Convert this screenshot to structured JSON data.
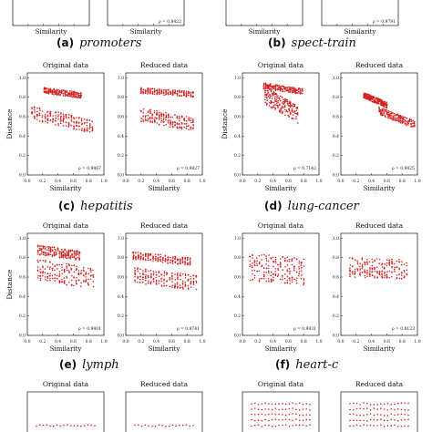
{
  "captions": [
    {
      "label": "(a)",
      "name": "promoters"
    },
    {
      "label": "(b)",
      "name": "spect-train"
    },
    {
      "label": "(c)",
      "name": "hepatitis"
    },
    {
      "label": "(d)",
      "name": "lung-cancer"
    },
    {
      "label": "(e)",
      "name": "lymph"
    },
    {
      "label": "(f)",
      "name": "heart-c"
    }
  ],
  "panel_titles": {
    "left": "Original data",
    "right": "Reduced data"
  },
  "axis_labels": {
    "x": "Similarity",
    "y": "Distance"
  },
  "colors": {
    "points": "#d42020",
    "axes": "#333333"
  },
  "chart_data": [
    {
      "dataset": "promoters",
      "type": "scatter",
      "xlabel": "Similarity",
      "stats_text": [
        "",
        "ρ = 0.8422"
      ]
    },
    {
      "dataset": "spect-train",
      "type": "scatter",
      "xlabel": "Similarity",
      "stats_text": [
        "",
        "ρ = 0.9791"
      ]
    },
    {
      "dataset": "hepatitis",
      "type": "scatter",
      "xlabel": "Similarity",
      "ylabel": "Distance",
      "xticks": [
        "0.0",
        "0.2",
        "0.4",
        "0.6",
        "0.8",
        "1.0"
      ],
      "yticks": [
        "0.0",
        "0.2",
        "0.4",
        "0.6",
        "0.8",
        "1.0"
      ],
      "xlim": [
        0,
        1
      ],
      "ylim": [
        0,
        1.05
      ],
      "stats_text": [
        "ρ = 0.9867",
        "ρ = 0.9827"
      ],
      "original_bands": [
        {
          "x_range": [
            0.22,
            0.7
          ],
          "y_start": 0.87,
          "y_end": 0.82,
          "spread": 0.03
        },
        {
          "x_range": [
            0.06,
            0.85
          ],
          "y_start": 0.64,
          "y_end": 0.5,
          "spread": 0.07
        }
      ],
      "reduced_bands": [
        {
          "x_range": [
            0.2,
            0.88
          ],
          "y_start": 0.87,
          "y_end": 0.83,
          "spread": 0.03
        },
        {
          "x_range": [
            0.2,
            0.88
          ],
          "y_start": 0.62,
          "y_end": 0.52,
          "spread": 0.07
        }
      ]
    },
    {
      "dataset": "lung-cancer",
      "type": "scatter",
      "xlabel": "Similarity",
      "ylabel": "Distance",
      "xticks": [
        "0.0",
        "0.2",
        "0.4",
        "0.6",
        "0.8",
        "1.0"
      ],
      "yticks": [
        "0.0",
        "0.2",
        "0.4",
        "0.6",
        "0.8",
        "1.0"
      ],
      "xlim": [
        0,
        1
      ],
      "ylim": [
        0,
        1.05
      ],
      "stats_text": [
        "ρ = 0.7142",
        "ρ = 0.9825"
      ],
      "original_bands": [
        {
          "x_range": [
            0.28,
            0.78
          ],
          "y_start": 0.92,
          "y_end": 0.86,
          "spread": 0.03
        },
        {
          "x_range": [
            0.3,
            0.72
          ],
          "y_start": 0.82,
          "y_end": 0.62,
          "spread": 0.09
        }
      ],
      "reduced_bands": [
        {
          "x_range": [
            0.3,
            0.6
          ],
          "y_start": 0.82,
          "y_end": 0.72,
          "spread": 0.03
        },
        {
          "x_range": [
            0.5,
            0.96
          ],
          "y_start": 0.66,
          "y_end": 0.52,
          "spread": 0.04
        }
      ]
    },
    {
      "dataset": "lymph",
      "type": "scatter",
      "xlabel": "Similarity",
      "ylabel": "Distance",
      "xticks": [
        "0.0",
        "0.2",
        "0.4",
        "0.6",
        "0.8",
        "1.0"
      ],
      "yticks": [
        "0.0",
        "0.2",
        "0.4",
        "0.6",
        "0.8",
        "1.0"
      ],
      "xlim": [
        0,
        1
      ],
      "ylim": [
        0,
        1.05
      ],
      "stats_text": [
        "ρ = 0.9801",
        "ρ = 0.9741"
      ],
      "original_bands": [
        {
          "x_range": [
            0.14,
            0.68
          ],
          "y_start": 0.88,
          "y_end": 0.82,
          "spread": 0.05
        },
        {
          "x_range": [
            0.14,
            0.86
          ],
          "y_start": 0.68,
          "y_end": 0.58,
          "spread": 0.11
        }
      ],
      "reduced_bands": [
        {
          "x_range": [
            0.1,
            0.84
          ],
          "y_start": 0.82,
          "y_end": 0.76,
          "spread": 0.04
        },
        {
          "x_range": [
            0.12,
            0.92
          ],
          "y_start": 0.62,
          "y_end": 0.54,
          "spread": 0.08
        }
      ]
    },
    {
      "dataset": "heart-c",
      "type": "scatter",
      "xlabel": "Similarity",
      "xticks": [
        "0.0",
        "0.2",
        "0.4",
        "0.6",
        "0.8",
        "1.0"
      ],
      "yticks": [
        "0.0",
        "0.2",
        "0.4",
        "0.6",
        "0.8",
        "1.0"
      ],
      "xlim": [
        0,
        1
      ],
      "ylim": [
        0,
        1.05
      ],
      "stats_text": [
        "ρ = 0.9831",
        "ρ = 0.8123"
      ],
      "original_bands": [
        {
          "x_range": [
            0.1,
            0.8
          ],
          "y_start": 0.7,
          "y_end": 0.66,
          "spread": 0.14
        }
      ],
      "reduced_bands": [
        {
          "x_range": [
            0.12,
            0.86
          ],
          "y_start": 0.7,
          "y_end": 0.68,
          "spread": 0.1
        }
      ]
    }
  ]
}
